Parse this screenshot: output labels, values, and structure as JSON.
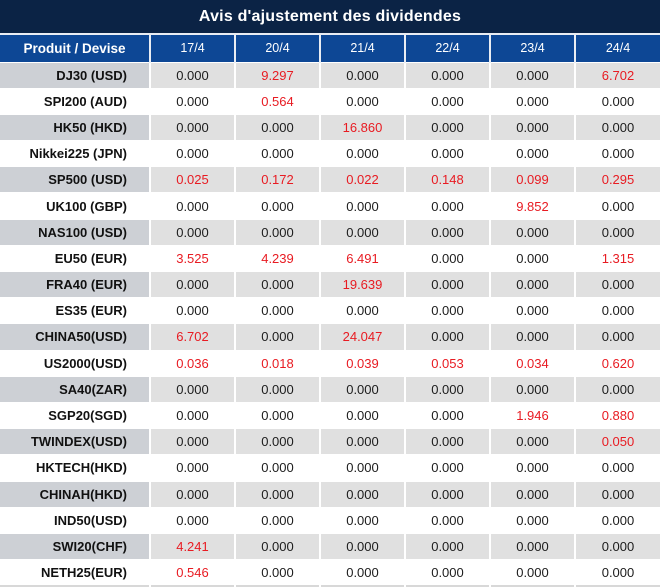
{
  "title": "Avis d'ajustement des dividendes",
  "colors": {
    "title_bg": "#0b2345",
    "header_bg": "#0d4795",
    "header_text": "#ffffff",
    "alt_row_product_bg": "#cdd0d5",
    "alt_row_value_bg": "#e0e0e0",
    "row_bg": "#ffffff",
    "value_text": "#1c1c1c",
    "highlight_text": "#e81b22"
  },
  "table": {
    "product_header": "Produit / Devise",
    "date_headers": [
      "17/4",
      "20/4",
      "21/4",
      "22/4",
      "23/4",
      "24/4"
    ],
    "rows": [
      {
        "product": "DJ30 (USD)",
        "values": [
          "0.000",
          "9.297",
          "0.000",
          "0.000",
          "0.000",
          "6.702"
        ],
        "highlight": [
          false,
          true,
          false,
          false,
          false,
          true
        ]
      },
      {
        "product": "SPI200 (AUD)",
        "values": [
          "0.000",
          "0.564",
          "0.000",
          "0.000",
          "0.000",
          "0.000"
        ],
        "highlight": [
          false,
          true,
          false,
          false,
          false,
          false
        ]
      },
      {
        "product": "HK50 (HKD)",
        "values": [
          "0.000",
          "0.000",
          "16.860",
          "0.000",
          "0.000",
          "0.000"
        ],
        "highlight": [
          false,
          false,
          true,
          false,
          false,
          false
        ]
      },
      {
        "product": "Nikkei225 (JPN)",
        "values": [
          "0.000",
          "0.000",
          "0.000",
          "0.000",
          "0.000",
          "0.000"
        ],
        "highlight": [
          false,
          false,
          false,
          false,
          false,
          false
        ]
      },
      {
        "product": "SP500 (USD)",
        "values": [
          "0.025",
          "0.172",
          "0.022",
          "0.148",
          "0.099",
          "0.295"
        ],
        "highlight": [
          true,
          true,
          true,
          true,
          true,
          true
        ]
      },
      {
        "product": "UK100 (GBP)",
        "values": [
          "0.000",
          "0.000",
          "0.000",
          "0.000",
          "9.852",
          "0.000"
        ],
        "highlight": [
          false,
          false,
          false,
          false,
          true,
          false
        ]
      },
      {
        "product": "NAS100 (USD)",
        "values": [
          "0.000",
          "0.000",
          "0.000",
          "0.000",
          "0.000",
          "0.000"
        ],
        "highlight": [
          false,
          false,
          false,
          false,
          false,
          false
        ]
      },
      {
        "product": "EU50 (EUR)",
        "values": [
          "3.525",
          "4.239",
          "6.491",
          "0.000",
          "0.000",
          "1.315"
        ],
        "highlight": [
          true,
          true,
          true,
          false,
          false,
          true
        ]
      },
      {
        "product": "FRA40 (EUR)",
        "values": [
          "0.000",
          "0.000",
          "19.639",
          "0.000",
          "0.000",
          "0.000"
        ],
        "highlight": [
          false,
          false,
          true,
          false,
          false,
          false
        ]
      },
      {
        "product": "ES35 (EUR)",
        "values": [
          "0.000",
          "0.000",
          "0.000",
          "0.000",
          "0.000",
          "0.000"
        ],
        "highlight": [
          false,
          false,
          false,
          false,
          false,
          false
        ]
      },
      {
        "product": "CHINA50(USD)",
        "values": [
          "6.702",
          "0.000",
          "24.047",
          "0.000",
          "0.000",
          "0.000"
        ],
        "highlight": [
          true,
          false,
          true,
          false,
          false,
          false
        ]
      },
      {
        "product": "US2000(USD)",
        "values": [
          "0.036",
          "0.018",
          "0.039",
          "0.053",
          "0.034",
          "0.620"
        ],
        "highlight": [
          true,
          true,
          true,
          true,
          true,
          true
        ]
      },
      {
        "product": "SA40(ZAR)",
        "values": [
          "0.000",
          "0.000",
          "0.000",
          "0.000",
          "0.000",
          "0.000"
        ],
        "highlight": [
          false,
          false,
          false,
          false,
          false,
          false
        ]
      },
      {
        "product": "SGP20(SGD)",
        "values": [
          "0.000",
          "0.000",
          "0.000",
          "0.000",
          "1.946",
          "0.880"
        ],
        "highlight": [
          false,
          false,
          false,
          false,
          true,
          true
        ]
      },
      {
        "product": "TWINDEX(USD)",
        "values": [
          "0.000",
          "0.000",
          "0.000",
          "0.000",
          "0.000",
          "0.050"
        ],
        "highlight": [
          false,
          false,
          false,
          false,
          false,
          true
        ]
      },
      {
        "product": "HKTECH(HKD)",
        "values": [
          "0.000",
          "0.000",
          "0.000",
          "0.000",
          "0.000",
          "0.000"
        ],
        "highlight": [
          false,
          false,
          false,
          false,
          false,
          false
        ]
      },
      {
        "product": "CHINAH(HKD)",
        "values": [
          "0.000",
          "0.000",
          "0.000",
          "0.000",
          "0.000",
          "0.000"
        ],
        "highlight": [
          false,
          false,
          false,
          false,
          false,
          false
        ]
      },
      {
        "product": "IND50(USD)",
        "values": [
          "0.000",
          "0.000",
          "0.000",
          "0.000",
          "0.000",
          "0.000"
        ],
        "highlight": [
          false,
          false,
          false,
          false,
          false,
          false
        ]
      },
      {
        "product": "SWI20(CHF)",
        "values": [
          "4.241",
          "0.000",
          "0.000",
          "0.000",
          "0.000",
          "0.000"
        ],
        "highlight": [
          true,
          false,
          false,
          false,
          false,
          false
        ]
      },
      {
        "product": "NETH25(EUR)",
        "values": [
          "0.546",
          "0.000",
          "0.000",
          "0.000",
          "0.000",
          "0.000"
        ],
        "highlight": [
          true,
          false,
          false,
          false,
          false,
          false
        ]
      }
    ]
  }
}
